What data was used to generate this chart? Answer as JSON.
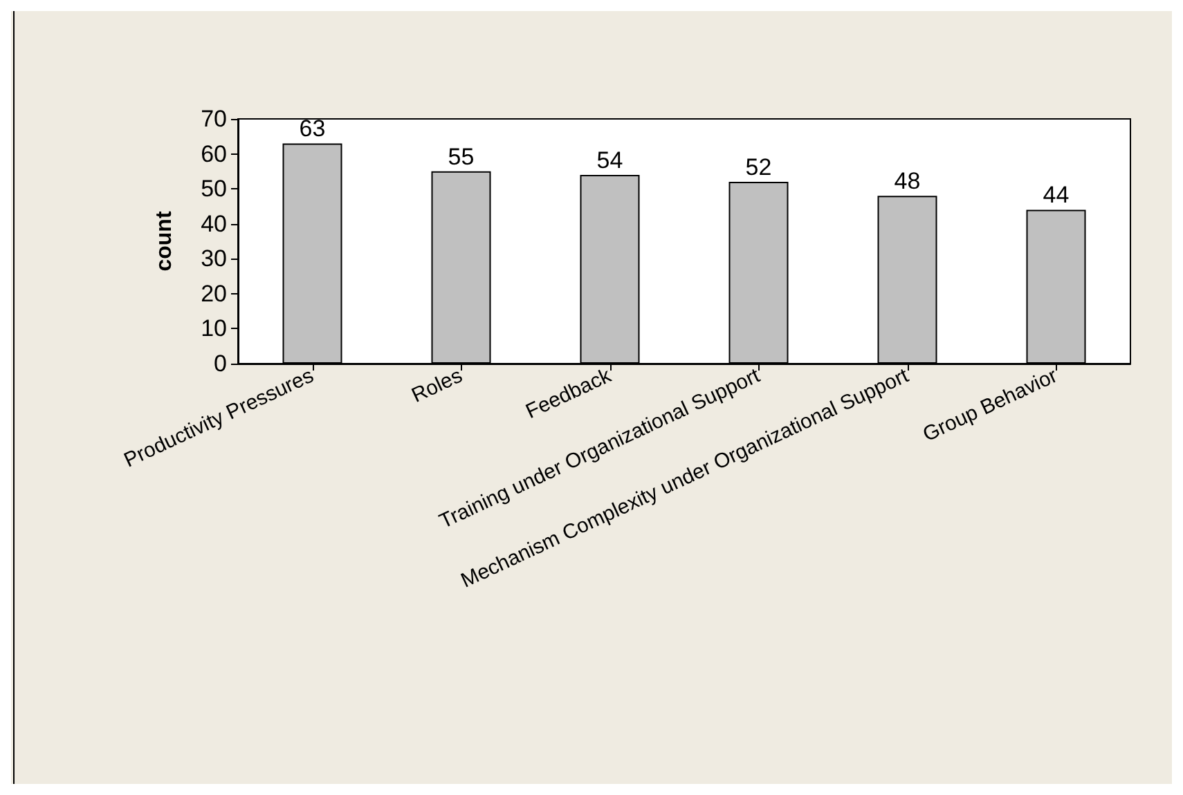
{
  "chart_data": {
    "type": "bar",
    "ylabel": "count",
    "categories": [
      "Productivity Pressures",
      "Roles",
      "Feedback",
      "Training under Organizational Support",
      "Mechanism Complexity under Organizational Support",
      "Group Behavior"
    ],
    "values": [
      63,
      55,
      54,
      52,
      48,
      44
    ],
    "color": "#c0c0c0",
    "ylim": [
      0,
      70
    ],
    "yticks": [
      0,
      10,
      20,
      30,
      40,
      50,
      60,
      70
    ],
    "grid": false,
    "data_labels": true
  }
}
